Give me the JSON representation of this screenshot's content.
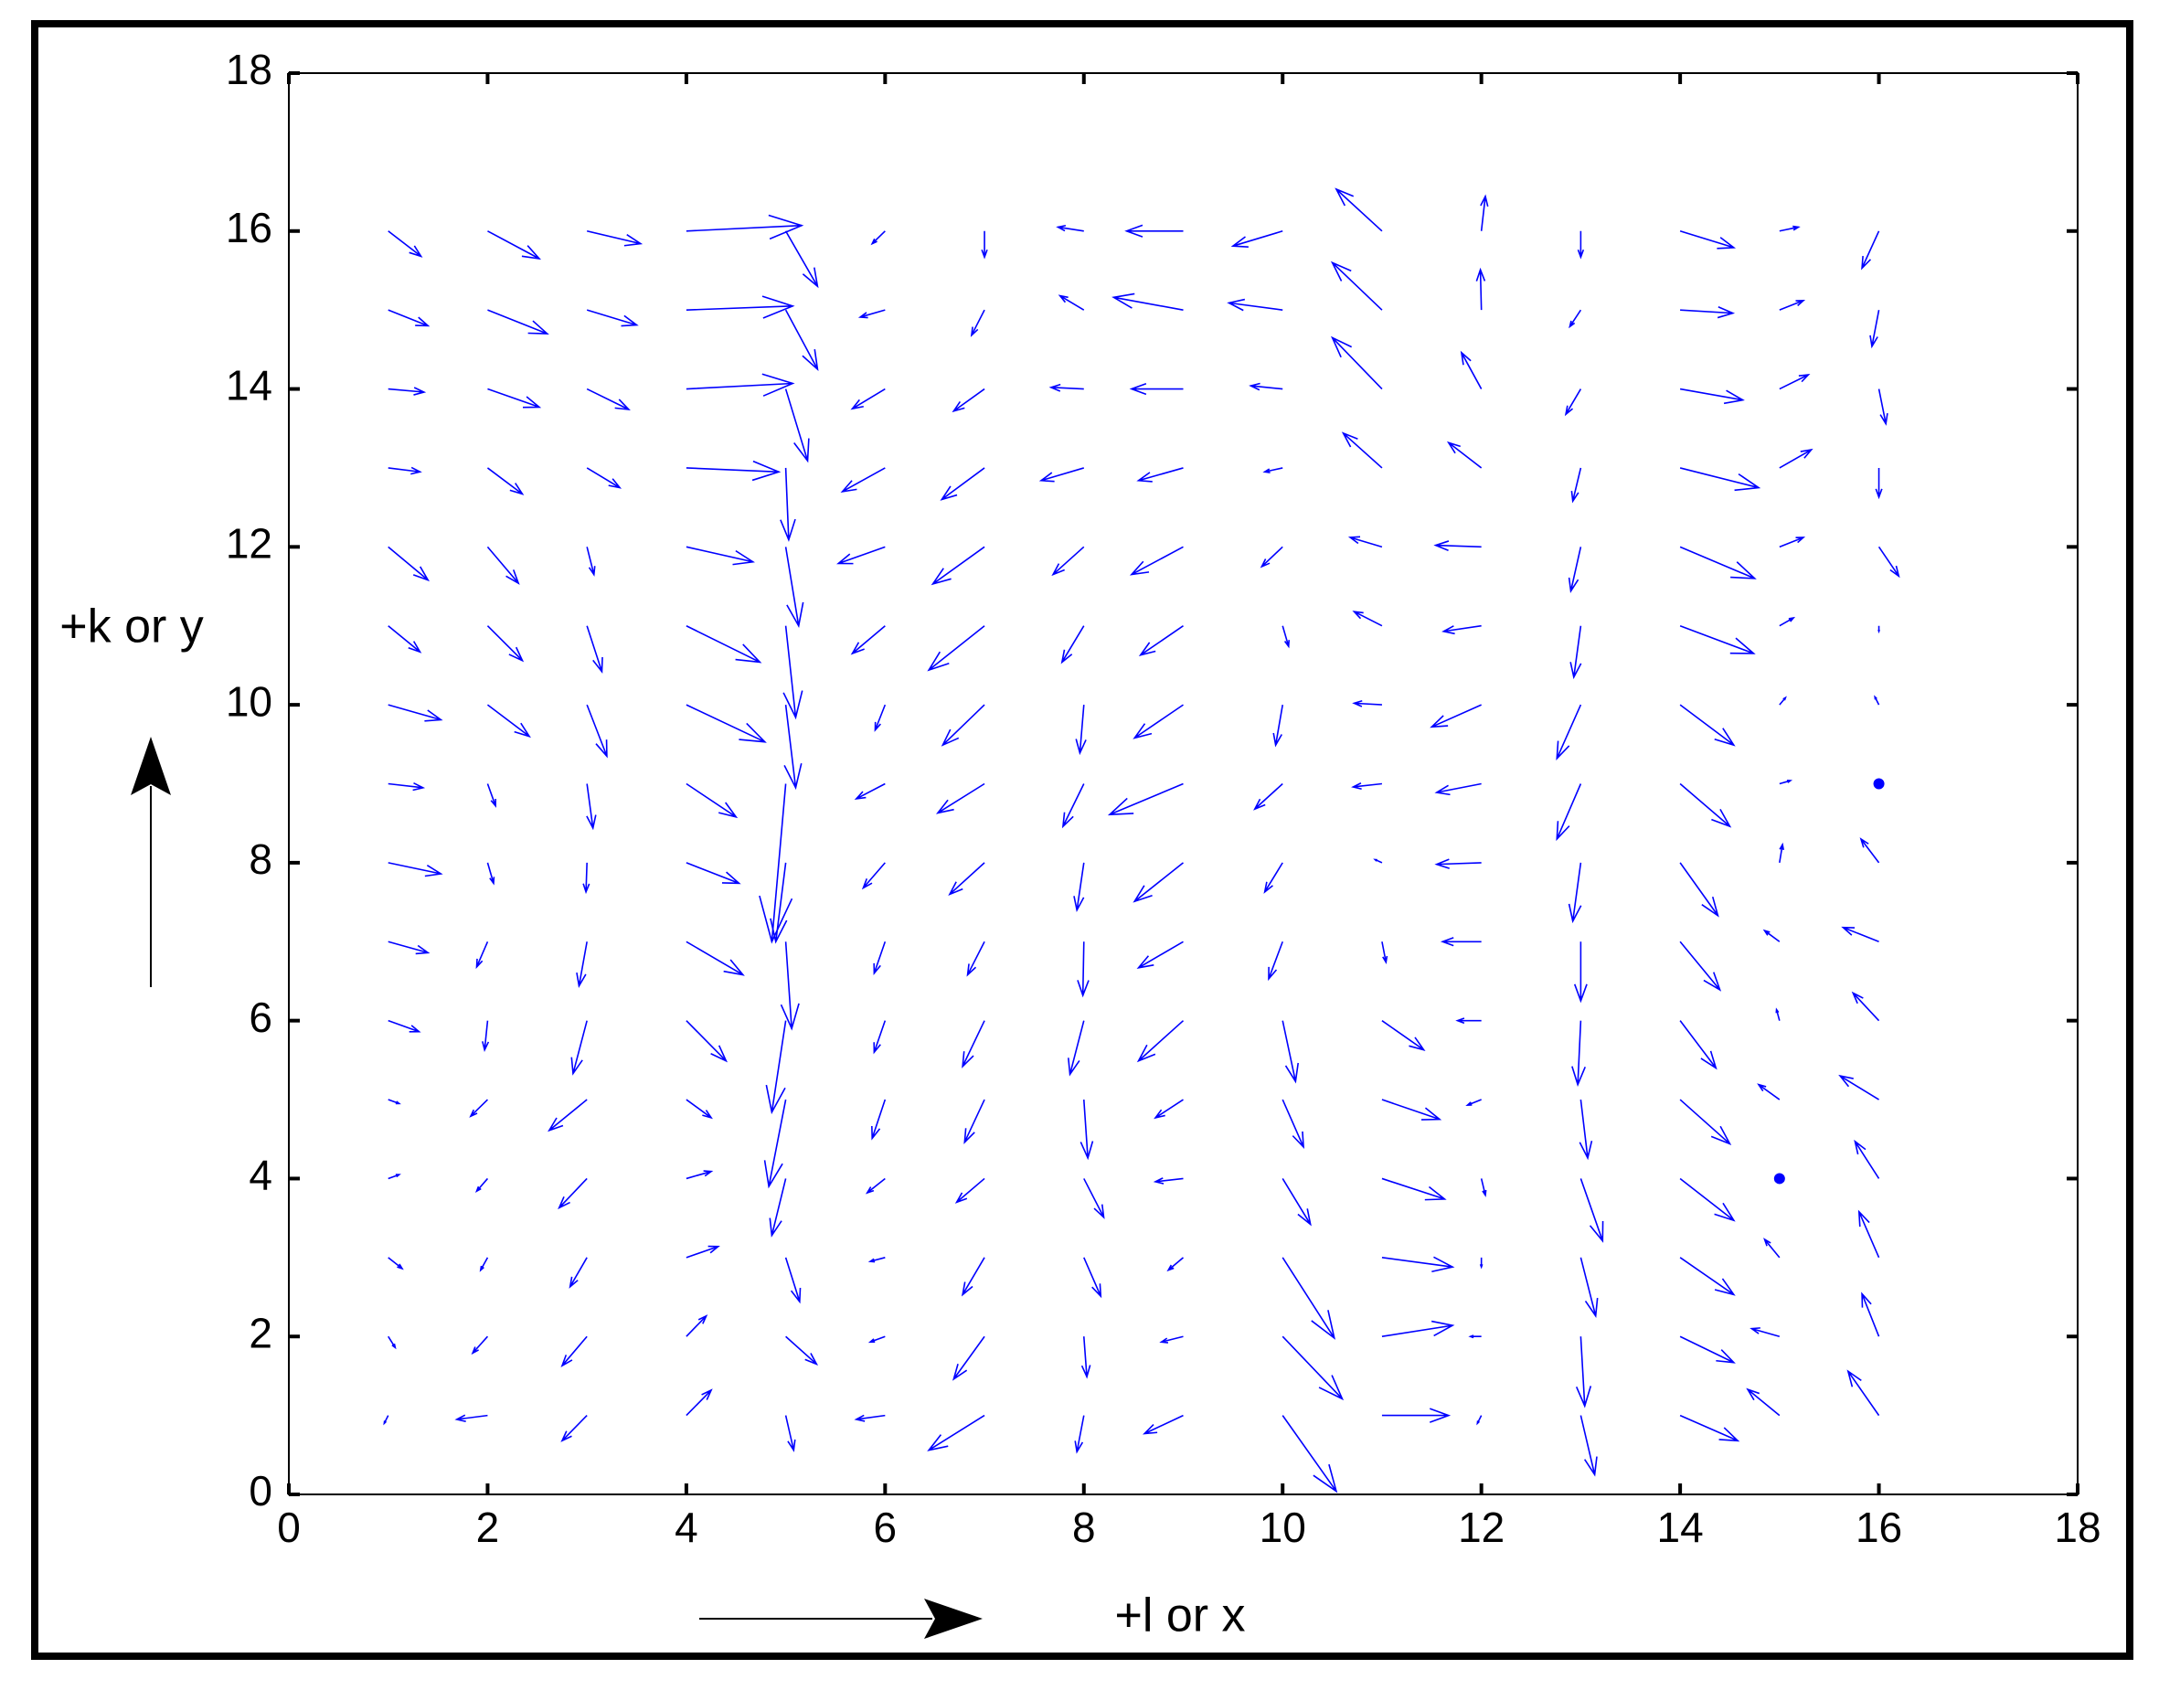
{
  "chart_data": {
    "type": "quiver",
    "xlabel": "+l or x",
    "ylabel": "+k or y",
    "color": "#0000ff",
    "xlim": [
      0,
      18
    ],
    "ylim": [
      0,
      18
    ],
    "xticks": [
      0,
      2,
      4,
      6,
      8,
      10,
      12,
      14,
      16,
      18
    ],
    "yticks": [
      0,
      2,
      4,
      6,
      8,
      10,
      12,
      14,
      16,
      18
    ],
    "box": true,
    "x": [
      1,
      1,
      1,
      1,
      1,
      1,
      1,
      1,
      1,
      1,
      1,
      1,
      1,
      1,
      1,
      1,
      2,
      2,
      2,
      2,
      2,
      2,
      2,
      2,
      2,
      2,
      2,
      2,
      2,
      2,
      2,
      2,
      3,
      3,
      3,
      3,
      3,
      3,
      3,
      3,
      3,
      3,
      3,
      3,
      3,
      3,
      3,
      3,
      4,
      4,
      4,
      4,
      4,
      4,
      4,
      4,
      4,
      4,
      4,
      4,
      4,
      4,
      4,
      4,
      5,
      5,
      5,
      5,
      5,
      5,
      5,
      5,
      5,
      5,
      5,
      5,
      5,
      5,
      5,
      5,
      6,
      6,
      6,
      6,
      6,
      6,
      6,
      6,
      6,
      6,
      6,
      6,
      6,
      6,
      6,
      6,
      7,
      7,
      7,
      7,
      7,
      7,
      7,
      7,
      7,
      7,
      7,
      7,
      7,
      7,
      7,
      7,
      8,
      8,
      8,
      8,
      8,
      8,
      8,
      8,
      8,
      8,
      8,
      8,
      8,
      8,
      8,
      8,
      9,
      9,
      9,
      9,
      9,
      9,
      9,
      9,
      9,
      9,
      9,
      9,
      9,
      9,
      9,
      9,
      10,
      10,
      10,
      10,
      10,
      10,
      10,
      10,
      10,
      10,
      10,
      10,
      10,
      10,
      10,
      10,
      11,
      11,
      11,
      11,
      11,
      11,
      11,
      11,
      11,
      11,
      11,
      11,
      11,
      11,
      11,
      11,
      12,
      12,
      12,
      12,
      12,
      12,
      12,
      12,
      12,
      12,
      12,
      12,
      12,
      12,
      12,
      12,
      13,
      13,
      13,
      13,
      13,
      13,
      13,
      13,
      13,
      13,
      13,
      13,
      13,
      13,
      13,
      13,
      14,
      14,
      14,
      14,
      14,
      14,
      14,
      14,
      14,
      14,
      14,
      14,
      14,
      14,
      14,
      14,
      15,
      15,
      15,
      15,
      15,
      15,
      15,
      15,
      15,
      15,
      15,
      15,
      15,
      15,
      15,
      15,
      16,
      16,
      16,
      16,
      16,
      16,
      16,
      16,
      16,
      16,
      16,
      16,
      16,
      16,
      16,
      16
    ],
    "y": [
      16,
      15,
      14,
      13,
      12,
      11,
      10,
      9,
      8,
      7,
      6,
      5,
      4,
      3,
      2,
      1,
      16,
      15,
      14,
      13,
      12,
      11,
      10,
      9,
      8,
      7,
      6,
      5,
      4,
      3,
      2,
      1,
      16,
      15,
      14,
      13,
      12,
      11,
      10,
      9,
      8,
      7,
      6,
      5,
      4,
      3,
      2,
      1,
      16,
      15,
      14,
      13,
      12,
      11,
      10,
      9,
      8,
      7,
      6,
      5,
      4,
      3,
      2,
      1,
      16,
      15,
      14,
      13,
      12,
      11,
      10,
      9,
      8,
      7,
      6,
      5,
      4,
      3,
      2,
      1,
      16,
      15,
      14,
      13,
      12,
      11,
      10,
      9,
      8,
      7,
      6,
      5,
      4,
      3,
      2,
      1,
      16,
      15,
      14,
      13,
      12,
      11,
      10,
      9,
      8,
      7,
      6,
      5,
      4,
      3,
      2,
      1,
      16,
      15,
      14,
      13,
      12,
      11,
      10,
      9,
      8,
      7,
      6,
      5,
      4,
      3,
      2,
      1,
      16,
      15,
      14,
      13,
      12,
      11,
      10,
      9,
      8,
      7,
      6,
      5,
      4,
      3,
      2,
      1,
      16,
      15,
      14,
      13,
      12,
      11,
      10,
      9,
      8,
      7,
      6,
      5,
      4,
      3,
      2,
      1,
      16,
      15,
      14,
      13,
      12,
      11,
      10,
      9,
      8,
      7,
      6,
      5,
      4,
      3,
      2,
      1,
      16,
      15,
      14,
      13,
      12,
      11,
      10,
      9,
      8,
      7,
      6,
      5,
      4,
      3,
      2,
      1,
      16,
      15,
      14,
      13,
      12,
      11,
      10,
      9,
      8,
      7,
      6,
      5,
      4,
      3,
      2,
      1,
      16,
      15,
      14,
      13,
      12,
      11,
      10,
      9,
      8,
      7,
      6,
      5,
      4,
      3,
      2,
      1,
      16,
      15,
      14,
      13,
      12,
      11,
      10,
      9,
      8,
      7,
      6,
      5,
      4,
      3,
      2,
      1,
      16,
      15,
      14,
      13,
      12,
      11,
      10,
      9,
      8,
      7,
      6,
      5,
      4,
      3,
      2,
      1
    ],
    "u": [
      0.33,
      0.4,
      0.36,
      0.32,
      0.4,
      0.32,
      0.53,
      0.35,
      0.53,
      0.4,
      0.31,
      0.11,
      0.11,
      0.14,
      0.07,
      -0.04,
      0.52,
      0.6,
      0.52,
      0.35,
      0.31,
      0.35,
      0.42,
      0.08,
      0.06,
      -0.11,
      -0.03,
      -0.17,
      -0.11,
      -0.07,
      -0.15,
      -0.31,
      0.54,
      0.5,
      0.42,
      0.33,
      0.07,
      0.15,
      0.2,
      0.06,
      -0.01,
      -0.08,
      -0.14,
      -0.38,
      -0.28,
      -0.17,
      -0.25,
      -0.25,
      1.16,
      1.07,
      1.07,
      0.93,
      0.67,
      0.74,
      0.79,
      0.5,
      0.53,
      0.57,
      0.4,
      0.25,
      0.25,
      0.32,
      0.2,
      0.25,
      0.32,
      0.32,
      0.22,
      0.03,
      0.13,
      0.1,
      0.1,
      -0.14,
      -0.1,
      0.06,
      -0.14,
      -0.17,
      -0.14,
      0.14,
      0.31,
      0.08,
      -0.13,
      -0.25,
      -0.33,
      -0.43,
      -0.47,
      -0.33,
      -0.1,
      -0.29,
      -0.22,
      -0.11,
      -0.11,
      -0.13,
      -0.18,
      -0.15,
      -0.15,
      -0.29,
      0,
      -0.13,
      -0.31,
      -0.43,
      -0.52,
      -0.56,
      -0.42,
      -0.47,
      -0.35,
      -0.17,
      -0.22,
      -0.2,
      -0.28,
      -0.22,
      -0.31,
      -0.56,
      -0.26,
      -0.24,
      -0.33,
      -0.43,
      -0.31,
      -0.22,
      -0.04,
      -0.21,
      -0.07,
      -0.01,
      -0.14,
      0.04,
      0.2,
      0.17,
      0.03,
      -0.07,
      -0.57,
      -0.7,
      -0.52,
      -0.45,
      -0.52,
      -0.43,
      -0.49,
      -0.74,
      -0.49,
      -0.45,
      -0.45,
      -0.28,
      -0.28,
      -0.15,
      -0.22,
      -0.39,
      -0.5,
      -0.54,
      -0.32,
      -0.18,
      -0.21,
      0.06,
      -0.07,
      -0.28,
      -0.18,
      -0.14,
      0.13,
      0.21,
      0.28,
      0.52,
      0.6,
      0.54,
      -0.46,
      -0.5,
      -0.5,
      -0.39,
      -0.32,
      -0.28,
      -0.28,
      -0.29,
      -0.07,
      0.04,
      0.42,
      0.58,
      0.63,
      0.71,
      0.71,
      0.67,
      0.04,
      -0.01,
      -0.2,
      -0.33,
      -0.46,
      -0.38,
      -0.5,
      -0.45,
      -0.45,
      -0.39,
      -0.24,
      -0.14,
      0.04,
      0,
      -0.11,
      -0.04,
      0,
      -0.11,
      -0.15,
      -0.08,
      -0.1,
      -0.07,
      -0.24,
      -0.24,
      -0.08,
      0,
      -0.03,
      0.07,
      0.22,
      0.15,
      0.04,
      0.14,
      0.54,
      0.53,
      0.63,
      0.79,
      0.75,
      0.74,
      0.54,
      0.5,
      0.38,
      0.4,
      0.36,
      0.5,
      0.54,
      0.54,
      0.54,
      0.58,
      0.19,
      0.24,
      0.29,
      0.32,
      0.24,
      0.14,
      0.06,
      0.11,
      0.03,
      -0.15,
      -0.03,
      -0.21,
      0,
      -0.15,
      -0.28,
      -0.32,
      -0.17,
      -0.07,
      0.07,
      0,
      0.2,
      0,
      -0.04,
      0,
      -0.18,
      -0.36,
      -0.26,
      -0.39,
      -0.24,
      -0.2,
      -0.17,
      -0.31
    ],
    "v": [
      -0.32,
      -0.2,
      -0.04,
      -0.05,
      -0.42,
      -0.33,
      -0.19,
      -0.05,
      -0.14,
      -0.14,
      -0.14,
      -0.05,
      0.05,
      -0.14,
      -0.14,
      -0.1,
      -0.35,
      -0.3,
      -0.23,
      -0.33,
      -0.46,
      -0.44,
      -0.4,
      -0.28,
      -0.26,
      -0.32,
      -0.37,
      -0.21,
      -0.16,
      -0.16,
      -0.21,
      -0.05,
      -0.16,
      -0.19,
      -0.26,
      -0.25,
      -0.35,
      -0.58,
      -0.65,
      -0.56,
      -0.37,
      -0.56,
      -0.67,
      -0.39,
      -0.37,
      -0.37,
      -0.37,
      -0.32,
      0.07,
      0.05,
      0.07,
      -0.05,
      -0.19,
      -0.46,
      -0.47,
      -0.42,
      -0.26,
      -0.42,
      -0.51,
      -0.23,
      0.09,
      0.14,
      0.26,
      0.32,
      -0.7,
      -0.75,
      -0.91,
      -0.91,
      -1.0,
      -1.16,
      -1.05,
      -2.0,
      -1.0,
      -1.1,
      -1.16,
      -1.1,
      -0.72,
      -0.56,
      -0.35,
      -0.44,
      -0.16,
      -0.09,
      -0.25,
      -0.3,
      -0.21,
      -0.35,
      -0.32,
      -0.19,
      -0.32,
      -0.4,
      -0.4,
      -0.49,
      -0.18,
      -0.05,
      -0.07,
      -0.05,
      -0.33,
      -0.32,
      -0.28,
      -0.4,
      -0.47,
      -0.56,
      -0.51,
      -0.37,
      -0.4,
      -0.42,
      -0.58,
      -0.54,
      -0.3,
      -0.47,
      -0.54,
      -0.44,
      0.05,
      0.18,
      0.02,
      -0.16,
      -0.35,
      -0.46,
      -0.61,
      -0.54,
      -0.6,
      -0.68,
      -0.68,
      -0.74,
      -0.49,
      -0.49,
      -0.51,
      -0.46,
      0,
      0.16,
      0,
      -0.16,
      -0.35,
      -0.37,
      -0.42,
      -0.39,
      -0.49,
      -0.33,
      -0.51,
      -0.23,
      -0.04,
      -0.16,
      -0.07,
      -0.23,
      -0.19,
      0.09,
      0.04,
      -0.05,
      -0.25,
      -0.26,
      -0.51,
      -0.32,
      -0.37,
      -0.47,
      -0.77,
      -0.6,
      -0.58,
      -1.02,
      -0.79,
      -0.96,
      0.53,
      0.6,
      0.65,
      0.44,
      0.12,
      0.18,
      0.02,
      -0.04,
      0.04,
      -0.26,
      -0.37,
      -0.25,
      -0.26,
      -0.12,
      0.14,
      0,
      0.44,
      0.51,
      0.46,
      0.32,
      0.02,
      -0.07,
      -0.28,
      -0.11,
      -0.02,
      0,
      0,
      -0.07,
      -0.21,
      -0.12,
      0,
      -0.1,
      -0.33,
      -0.21,
      -0.32,
      -0.42,
      -0.56,
      -0.65,
      -0.68,
      -0.7,
      -0.74,
      -0.75,
      -0.81,
      -0.74,
      -0.79,
      -0.74,
      -0.88,
      -0.75,
      -0.21,
      -0.04,
      -0.14,
      -0.25,
      -0.4,
      -0.35,
      -0.51,
      -0.54,
      -0.67,
      -0.61,
      -0.6,
      -0.56,
      -0.53,
      -0.47,
      -0.33,
      -0.32,
      0.05,
      0.12,
      0.18,
      0.23,
      0.12,
      0.1,
      0.09,
      0.04,
      0.23,
      0.14,
      0.14,
      0.19,
      0,
      0.23,
      0.1,
      0.33,
      -0.47,
      -0.46,
      -0.44,
      -0.37,
      -0.37,
      -0.07,
      0.1,
      0,
      0.3,
      0.18,
      0.35,
      0.3,
      0.47,
      0.58,
      0.54,
      0.56
    ]
  }
}
